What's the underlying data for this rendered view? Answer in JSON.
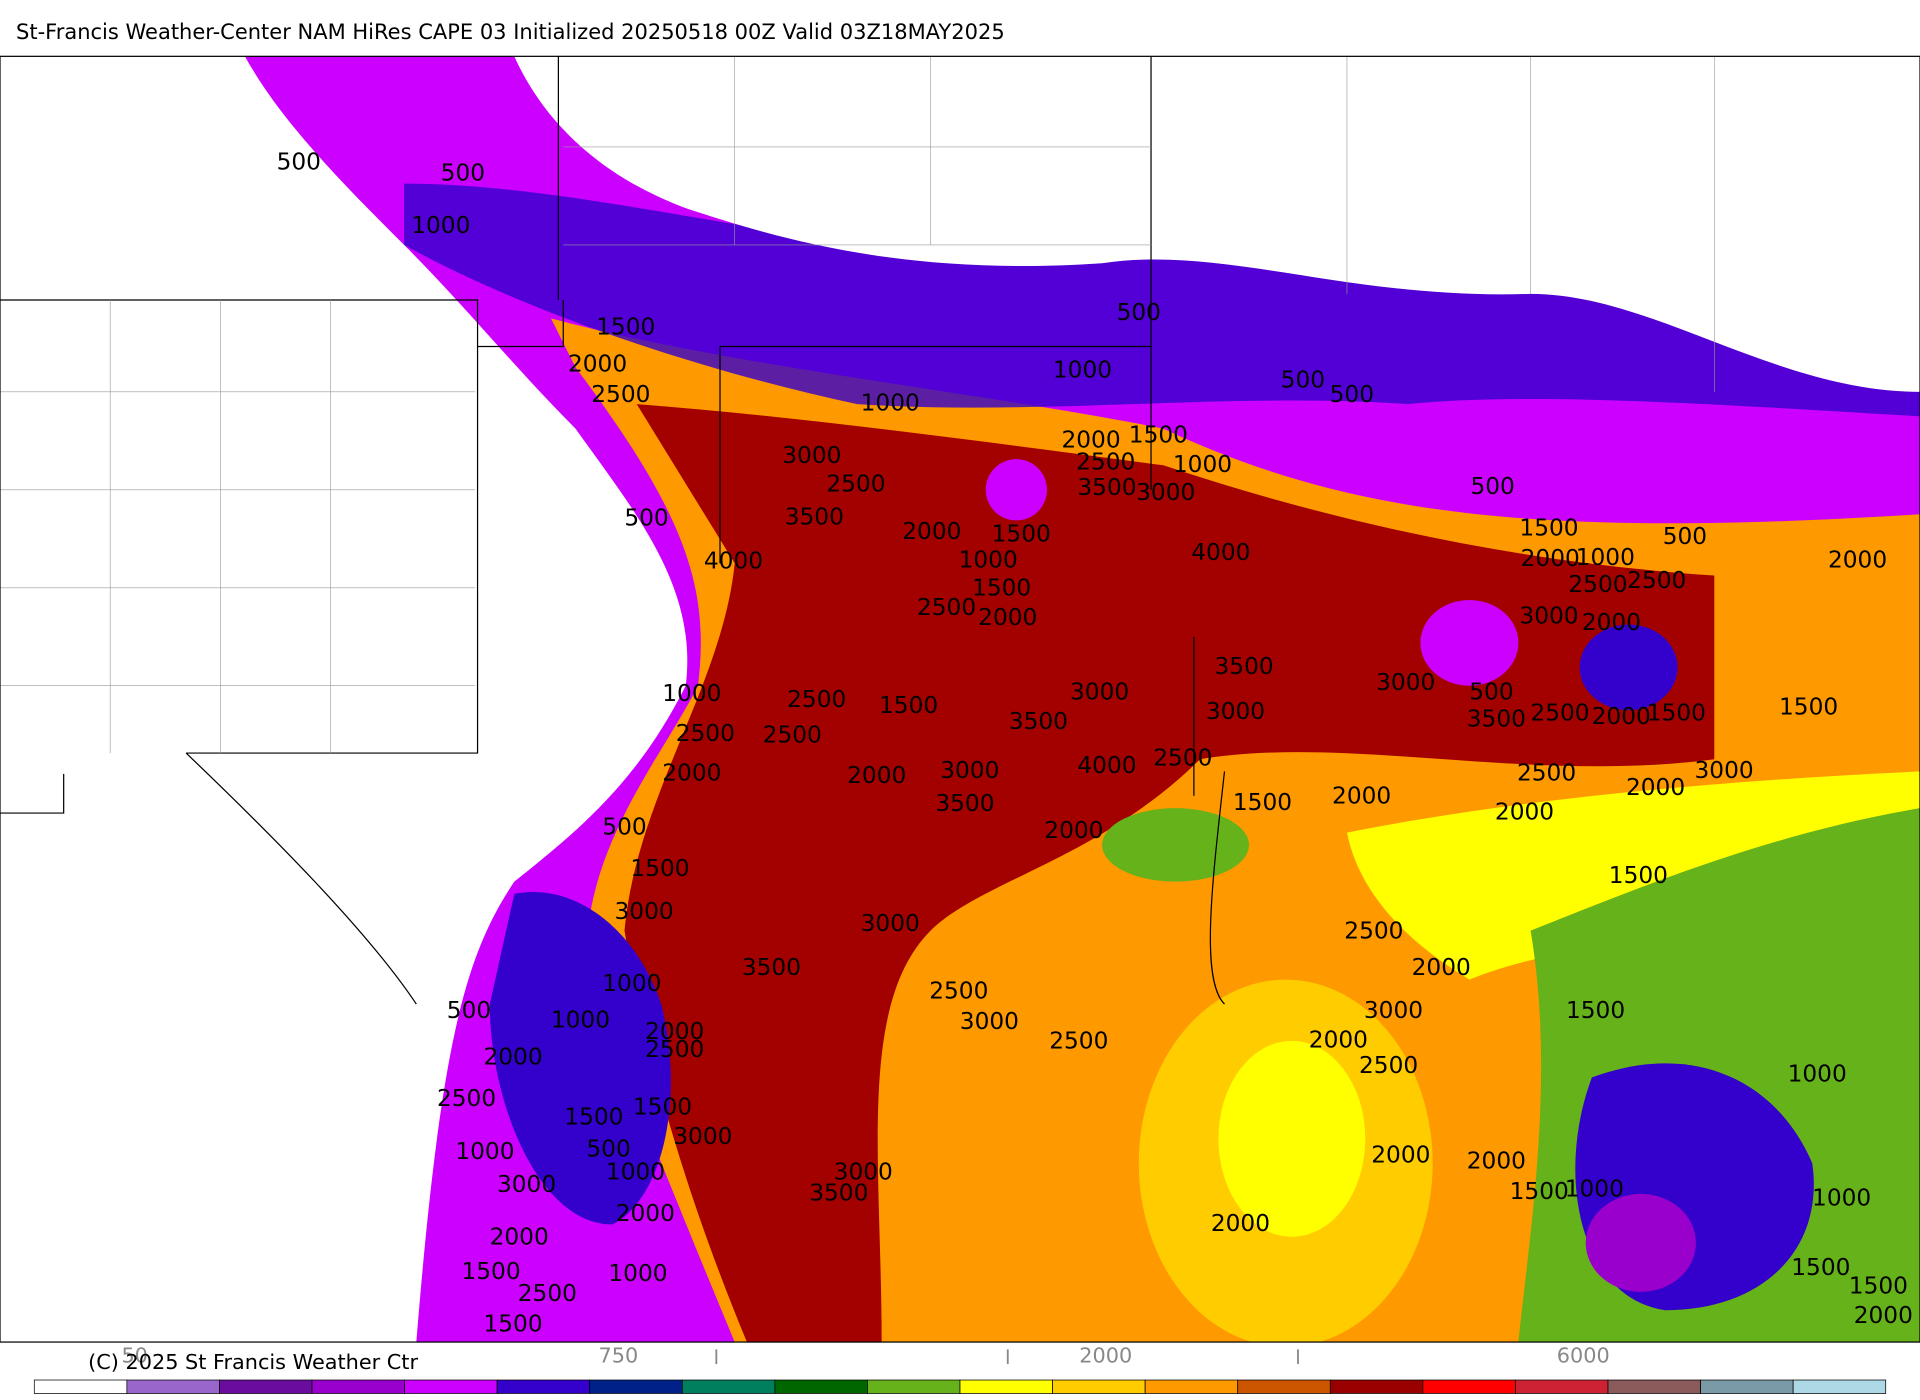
{
  "title": "St-Francis Weather-Center NAM HiRes CAPE  03 Initialized 20250518 00Z Valid 03Z18MAY2025",
  "copyright": "(C) 2025 St Francis Weather Ctr",
  "contour_labels": [
    500,
    500,
    1000,
    1500,
    2000,
    2500,
    500,
    1000,
    1000,
    500,
    500,
    2000,
    1500,
    2500,
    1000,
    3000,
    2500,
    3500,
    3000,
    500,
    3500,
    1500,
    2000,
    500,
    1500,
    500,
    4000,
    4000,
    1000,
    2000,
    1000,
    2000,
    1500,
    2500,
    2500,
    2500,
    2000,
    3000,
    2000,
    3500,
    3000,
    3000,
    500,
    1000,
    2500,
    1500,
    3000,
    3500,
    3500,
    2500,
    2000,
    1500,
    1500,
    2500,
    2500,
    2500,
    3000,
    2000,
    2000,
    3000,
    4000,
    2500,
    2000,
    3500,
    1500,
    2000,
    2000,
    500,
    2000,
    1500,
    1500,
    3000,
    3000,
    2500,
    3500,
    2000,
    1000,
    2500,
    500,
    1000,
    3000,
    3000,
    1500,
    2000,
    2500,
    2000,
    2500,
    2000,
    2500,
    1000,
    2500,
    1500,
    1500,
    3000,
    500,
    1000,
    2000,
    2000,
    1000,
    3000,
    3000,
    3500,
    1500,
    1000,
    1000,
    2000,
    2000,
    2000,
    1500,
    1500,
    1000,
    1500,
    2500,
    2000,
    1500
  ],
  "colorbar": {
    "colors": [
      "#ffffff",
      "#9966cc",
      "#6a0d9e",
      "#9900cc",
      "#cc00ff",
      "#3300cc",
      "#002288",
      "#007f5f",
      "#006600",
      "#66b21a",
      "#ffff00",
      "#ffcc00",
      "#ff9900",
      "#cc5500",
      "#990000",
      "#ff0000",
      "#cc2233",
      "#8b5a5a",
      "#7a9aa8",
      "#add8e6"
    ],
    "labels": [
      50,
      750,
      2000,
      6000
    ]
  }
}
